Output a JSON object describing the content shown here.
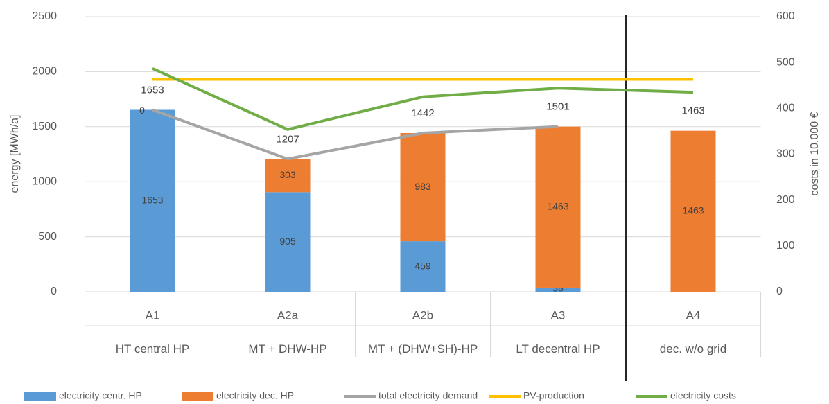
{
  "chart_data": {
    "type": "bar",
    "categories": [
      "A1",
      "A2a",
      "A2b",
      "A3",
      "A4"
    ],
    "category_names": [
      "HT central HP",
      "MT + DHW-HP",
      "MT + (DHW+SH)-HP",
      "LT decentral HP",
      "dec. w/o grid"
    ],
    "ylabel": "energy [MWh/a]",
    "y2label": "costs in 10.000 €",
    "ylim": [
      0,
      2500
    ],
    "yticks": [
      0,
      500,
      1000,
      1500,
      2000,
      2500
    ],
    "y2lim": [
      0,
      600
    ],
    "y2ticks": [
      0,
      100,
      200,
      300,
      400,
      500,
      600
    ],
    "grid": true,
    "series": [
      {
        "name": "electricity centr. HP",
        "color": "#5b9bd5",
        "kind": "bar",
        "values": [
          1653,
          905,
          459,
          38,
          0
        ]
      },
      {
        "name": "electricity dec. HP",
        "color": "#ed7d31",
        "kind": "bar",
        "values": [
          0,
          303,
          983,
          1463,
          1463
        ]
      },
      {
        "name": "total electricity demand",
        "color": "#a5a5a5",
        "kind": "line",
        "values": [
          1653,
          1207,
          1442,
          1501,
          null
        ]
      },
      {
        "name": "PV-production",
        "color": "#ffc000",
        "kind": "line",
        "values": [
          1930,
          1930,
          1930,
          1930,
          1930
        ]
      },
      {
        "name": "electricity costs",
        "color": "#70ad47",
        "kind": "line",
        "axis": "y2",
        "values": [
          487,
          354,
          425,
          444,
          435
        ]
      }
    ],
    "total_labels": [
      1653,
      1207,
      1442,
      1501,
      1463
    ]
  }
}
